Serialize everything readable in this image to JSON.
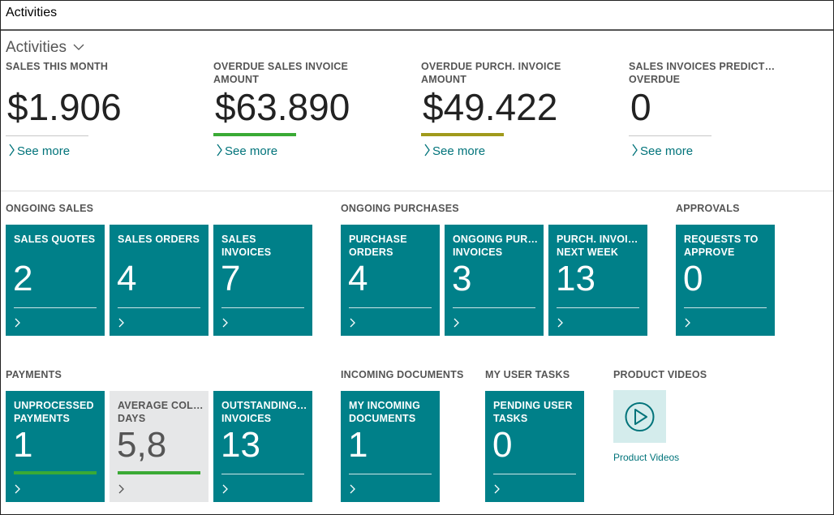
{
  "header": {
    "title": "Activities"
  },
  "section": {
    "title": "Activities"
  },
  "kpis": [
    {
      "label": "SALES THIS MONTH",
      "value": "$1.906",
      "link": "See more",
      "indicator": "#c8c8c8"
    },
    {
      "label": "OVERDUE SALES INVOICE\nAMOUNT",
      "value": "$63.890",
      "link": "See more",
      "indicator": "#3aaa35"
    },
    {
      "label": "OVERDUE PURCH. INVOICE\nAMOUNT",
      "value": "$49.422",
      "link": "See more",
      "indicator": "#a09a1b"
    },
    {
      "label": "SALES INVOICES PREDICT…\nOVERDUE",
      "value": "0",
      "link": "See more",
      "indicator": "#c8c8c8"
    }
  ],
  "groups": [
    {
      "title": "ONGOING SALES",
      "tiles": [
        {
          "label": "SALES QUOTES",
          "value": "2"
        },
        {
          "label": "SALES ORDERS",
          "value": "4"
        },
        {
          "label": "SALES\nINVOICES",
          "value": "7"
        }
      ]
    },
    {
      "title": "ONGOING PURCHASES",
      "tiles": [
        {
          "label": "PURCHASE\nORDERS",
          "value": "4"
        },
        {
          "label": "ONGOING PUR…\nINVOICES",
          "value": "3"
        },
        {
          "label": "PURCH. INVOI…\nNEXT WEEK",
          "value": "13"
        }
      ]
    },
    {
      "title": "APPROVALS",
      "tiles": [
        {
          "label": "REQUESTS TO\nAPPROVE",
          "value": "0"
        }
      ]
    },
    {
      "title": "PAYMENTS",
      "tiles": [
        {
          "label": "UNPROCESSED\nPAYMENTS",
          "value": "1",
          "indicator": "#3aaa35"
        },
        {
          "label": "AVERAGE COL…\nDAYS",
          "value": "5,8",
          "indicator": "#3aaa35",
          "style": "gray"
        },
        {
          "label": "OUTSTANDING…\nINVOICES",
          "value": "13"
        }
      ]
    },
    {
      "title": "INCOMING DOCUMENTS",
      "tiles": [
        {
          "label": "MY INCOMING\nDOCUMENTS",
          "value": "1"
        }
      ]
    },
    {
      "title": "MY USER TASKS",
      "tiles": [
        {
          "label": "PENDING USER\nTASKS",
          "value": "0"
        }
      ]
    }
  ],
  "videos": {
    "title": "PRODUCT VIDEOS",
    "label": "Product Videos"
  }
}
